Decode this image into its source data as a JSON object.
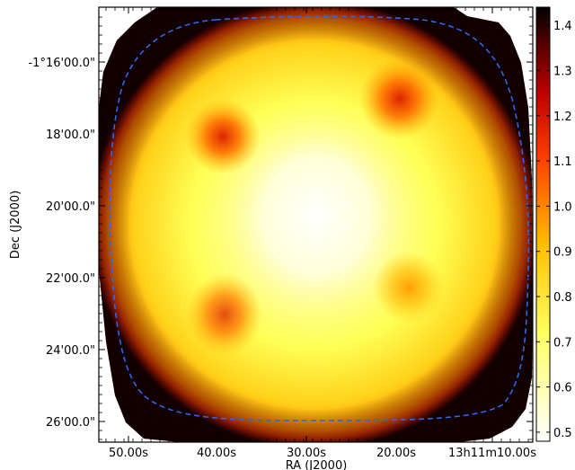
{
  "chart_data": {
    "type": "heatmap",
    "xlabel": "RA (J2000)",
    "ylabel": "Dec (J2000)",
    "x_ticks": [
      "50.00s",
      "40.00s",
      "30.00s",
      "20.00s",
      "13h11m10.00s"
    ],
    "y_ticks": [
      "-1°16'00.0\"",
      "18'00.0\"",
      "20'00.0\"",
      "22'00.0\"",
      "24'00.0\"",
      "26'00.0\""
    ],
    "colorbar": {
      "ticks": [
        "1.4",
        "1.3",
        "1.2",
        "1.1",
        "1.0",
        "0.9",
        "0.8",
        "0.7",
        "0.6",
        "0.5"
      ],
      "range": [
        0.48,
        1.44
      ],
      "colormap": "afmhot_r"
    },
    "contour": {
      "style": "dashed",
      "color": "#2f66e8"
    },
    "features": [
      {
        "name": "central-minimum",
        "value": 0.5
      },
      {
        "name": "upper-left-peak",
        "value": 1.2
      },
      {
        "name": "upper-right-peak",
        "value": 1.2
      },
      {
        "name": "lower-left-peak",
        "value": 1.1
      },
      {
        "name": "lower-right-peak",
        "value": 0.9
      }
    ],
    "grid": false
  }
}
